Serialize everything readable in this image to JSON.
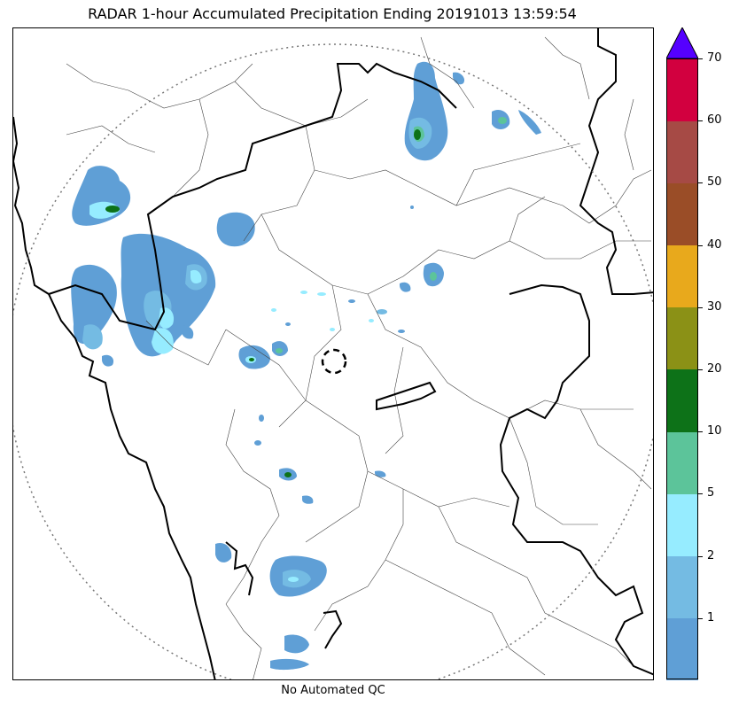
{
  "title": "RADAR 1-hour Accumulated Precipitation Ending 20191013 13:59:54",
  "footer_note": "No Automated QC",
  "colorbar": {
    "segments": [
      {
        "color": "#5f9fd6"
      },
      {
        "color": "#74bbe3"
      },
      {
        "color": "#96ecff"
      },
      {
        "color": "#5cc49a"
      },
      {
        "color": "#0d7218"
      },
      {
        "color": "#8b9116"
      },
      {
        "color": "#e8a91c"
      },
      {
        "color": "#9a4d27"
      },
      {
        "color": "#a64a45"
      },
      {
        "color": "#d2003f"
      }
    ],
    "extend_color": "#5500ff",
    "tick_labels": [
      "1",
      "2",
      "5",
      "10",
      "20",
      "30",
      "40",
      "50",
      "60",
      "70"
    ]
  }
}
